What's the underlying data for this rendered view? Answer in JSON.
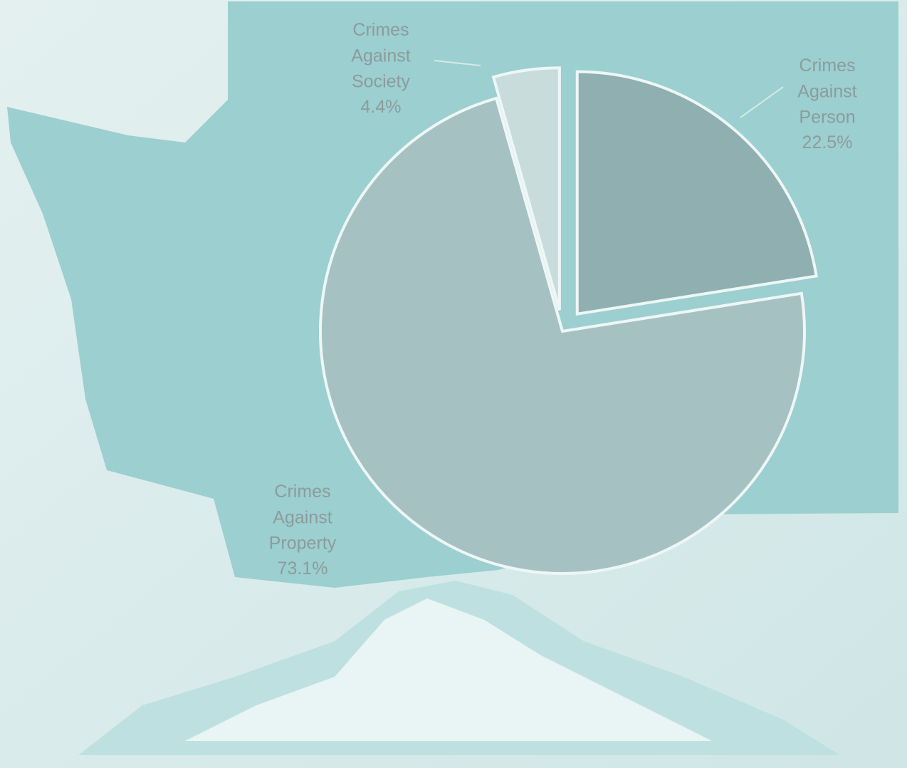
{
  "chart_data": {
    "type": "pie",
    "categories": [
      "Crimes Against Person",
      "Crimes Against Property",
      "Crimes Against Society"
    ],
    "values": [
      22.5,
      73.1,
      4.4
    ],
    "value_labels": [
      "22.5%",
      "73.1%",
      "4.4%"
    ],
    "colors": [
      "#8fafb0",
      "#a6c1c2",
      "#c8dcdc"
    ]
  }
}
